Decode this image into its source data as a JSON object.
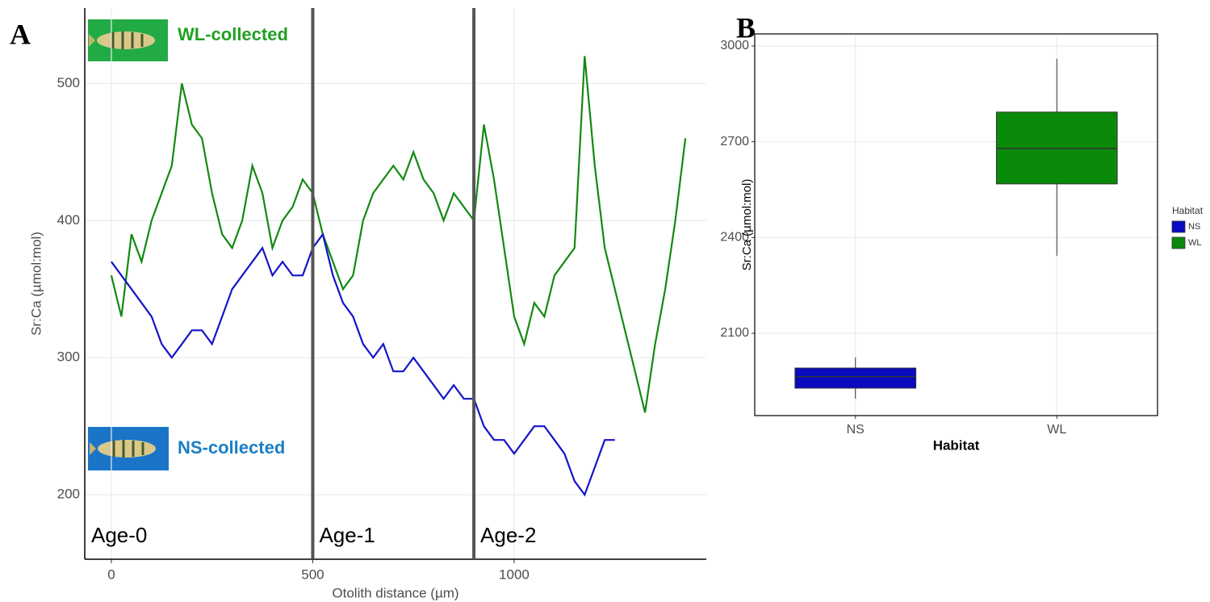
{
  "chart_data": [
    {
      "type": "line",
      "panel": "A",
      "x_label": "Otolith distance (µm)",
      "y_label": "Sr:Ca (µmol:mol)",
      "x": [
        0,
        25,
        50,
        75,
        100,
        125,
        150,
        175,
        200,
        225,
        250,
        275,
        300,
        325,
        350,
        375,
        400,
        425,
        450,
        475,
        500,
        525,
        550,
        575,
        600,
        625,
        650,
        675,
        700,
        725,
        750,
        775,
        800,
        825,
        850,
        875,
        900,
        925,
        950,
        975,
        1000,
        1025,
        1050,
        1075,
        1100,
        1125,
        1150,
        1175,
        1200,
        1225,
        1250,
        1275,
        1300,
        1325,
        1350,
        1375,
        1400,
        1425
      ],
      "series": [
        {
          "name": "WL-collected",
          "color": "#128a12",
          "label_color": "#22a022",
          "values": [
            360,
            330,
            390,
            370,
            400,
            420,
            440,
            500,
            470,
            460,
            420,
            390,
            380,
            400,
            440,
            420,
            380,
            400,
            410,
            430,
            420,
            390,
            370,
            350,
            360,
            400,
            420,
            430,
            440,
            430,
            450,
            430,
            420,
            400,
            420,
            410,
            400,
            470,
            430,
            380,
            330,
            310,
            340,
            330,
            360,
            370,
            380,
            520,
            440,
            380,
            350,
            320,
            290,
            260,
            310,
            350,
            400,
            460
          ]
        },
        {
          "name": "NS-collected",
          "color": "#1414c8",
          "label_color": "#1a7fc4",
          "values": [
            370,
            360,
            350,
            340,
            330,
            310,
            300,
            310,
            320,
            320,
            310,
            330,
            350,
            360,
            370,
            380,
            360,
            370,
            360,
            360,
            380,
            390,
            360,
            340,
            330,
            310,
            300,
            310,
            290,
            290,
            300,
            290,
            280,
            270,
            280,
            270,
            270,
            250,
            240,
            240,
            230,
            240,
            250,
            250,
            240,
            230,
            210,
            200,
            220,
            240,
            240,
            null,
            null,
            null,
            null,
            null,
            null,
            null
          ]
        }
      ],
      "xlim": [
        -66,
        1477
      ],
      "ylim": [
        153,
        555
      ],
      "xticks": [
        0,
        500,
        1000
      ],
      "yticks": [
        200,
        300,
        400,
        500
      ],
      "grid": true,
      "vlines": [
        500,
        900
      ],
      "regions": [
        "Age-0",
        "Age-1",
        "Age-2"
      ]
    },
    {
      "type": "box",
      "panel": "B",
      "x_label": "Habitat",
      "y_label": "Sr:Ca (µmol:mol)",
      "categories": [
        "NS",
        "WL"
      ],
      "colors": [
        "#0a0ac0",
        "#0a8a0a"
      ],
      "boxes": [
        {
          "whisker_low": 1895,
          "q1": 1928,
          "median": 1964,
          "q3": 1991,
          "whisker_high": 2024
        },
        {
          "whisker_low": 2343,
          "q1": 2568,
          "median": 2679,
          "q3": 2793,
          "whisker_high": 2960
        }
      ],
      "ylim": [
        1842,
        3038
      ],
      "yticks": [
        2100,
        2400,
        2700,
        3000
      ],
      "grid": true,
      "legend_title": "Habitat",
      "legend": "right"
    }
  ]
}
